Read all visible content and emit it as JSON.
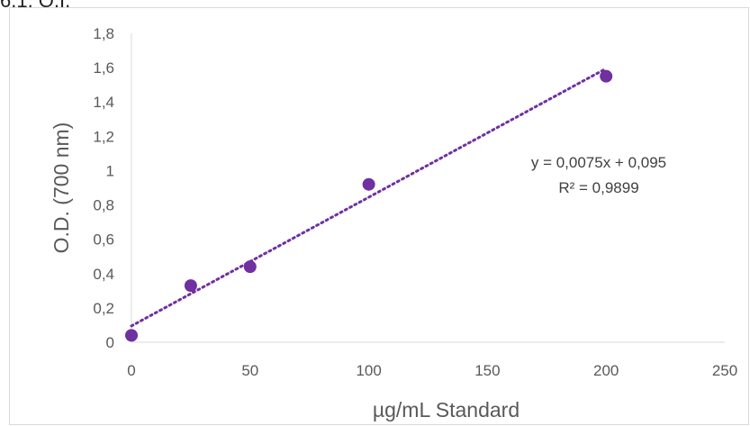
{
  "top_fragment": "6.1. O.I.",
  "chart_data": {
    "type": "scatter",
    "xlabel": "µg/mL Standard",
    "ylabel": "O.D. (700 nm)",
    "xlim": [
      0,
      250
    ],
    "ylim": [
      0,
      1.8
    ],
    "x_ticks": [
      "0",
      "50",
      "100",
      "150",
      "200",
      "250"
    ],
    "y_ticks": [
      "0",
      "0,2",
      "0,4",
      "0,6",
      "0,8",
      "1",
      "1,2",
      "1,4",
      "1,6",
      "1,8"
    ],
    "grid": false,
    "legend": "none",
    "series": [
      {
        "x": [
          0,
          25,
          50,
          100,
          200
        ],
        "y": [
          0.04,
          0.33,
          0.44,
          0.92,
          1.55
        ],
        "color": "#7030A0"
      }
    ],
    "trendline": {
      "slope": 0.0075,
      "intercept": 0.095,
      "style": "dotted",
      "color": "#7030A0",
      "x_range": [
        0,
        200
      ]
    },
    "annotations": {
      "equation": "y = 0,0075x + 0,095",
      "r_squared": "R² = 0,9899"
    }
  }
}
